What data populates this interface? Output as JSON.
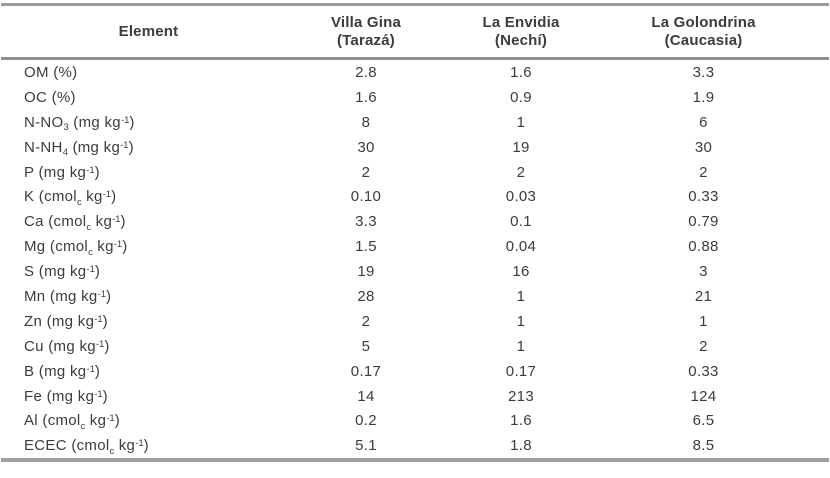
{
  "table": {
    "columns": [
      {
        "title": "Element"
      },
      {
        "title": "Villa Gina",
        "subtitle": "(Tarazá)"
      },
      {
        "title": "La Envidia",
        "subtitle": "(Nechí)"
      },
      {
        "title": "La Golondrina",
        "subtitle": "(Caucasia)"
      }
    ],
    "rows": [
      {
        "element": "OM (%)",
        "values": [
          "2.8",
          "1.6",
          "3.3"
        ]
      },
      {
        "element": "OC (%)",
        "values": [
          "1.6",
          "0.9",
          "1.9"
        ]
      },
      {
        "element": "N-NO_3_ (mg kg^-1^)",
        "values": [
          "8",
          "1",
          "6"
        ]
      },
      {
        "element": "N-NH_4_ (mg kg^-1^)",
        "values": [
          "30",
          "19",
          "30"
        ]
      },
      {
        "element": "P (mg kg^-1^)",
        "values": [
          "2",
          "2",
          "2"
        ]
      },
      {
        "element": "K (cmol_c_ kg^-1^)",
        "values": [
          "0.10",
          "0.03",
          "0.33"
        ]
      },
      {
        "element": "Ca (cmol_c_ kg^-1^)",
        "values": [
          "3.3",
          "0.1",
          "0.79"
        ]
      },
      {
        "element": "Mg (cmol_c_ kg^-1^)",
        "values": [
          "1.5",
          "0.04",
          "0.88"
        ]
      },
      {
        "element": "S (mg kg^-1^)",
        "values": [
          "19",
          "16",
          "3"
        ]
      },
      {
        "element": "Mn (mg kg^-1^)",
        "values": [
          "28",
          "1",
          "21"
        ]
      },
      {
        "element": "Zn (mg kg^-1^)",
        "values": [
          "2",
          "1",
          "1"
        ]
      },
      {
        "element": "Cu (mg kg^-1^)",
        "values": [
          "5",
          "1",
          "2"
        ]
      },
      {
        "element": "B (mg kg^-1^)",
        "values": [
          "0.17",
          "0.17",
          "0.33"
        ]
      },
      {
        "element": "Fe (mg kg^-1^)",
        "values": [
          "14",
          "213",
          "124"
        ]
      },
      {
        "element": "Al (cmol_c_ kg^-1^)",
        "values": [
          "0.2",
          "1.6",
          "6.5"
        ]
      },
      {
        "element": "ECEC (cmol_c_ kg^-1^)",
        "values": [
          "5.1",
          "1.8",
          "8.5"
        ]
      }
    ]
  },
  "colors": {
    "rule_top": "#9a9a9a",
    "rule_header_separator": "#8e8e8e",
    "rule_bottom": "#a0a0a0",
    "text": "#3c3c3c"
  }
}
